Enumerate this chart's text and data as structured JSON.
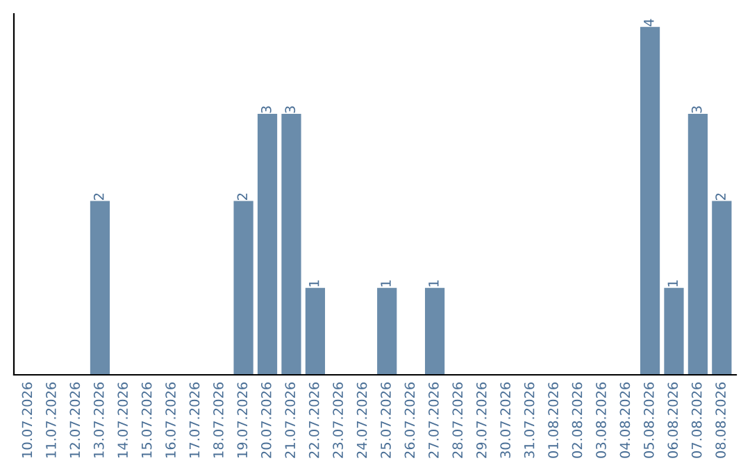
{
  "chart_data": {
    "type": "bar",
    "categories": [
      "10.07.2026",
      "11.07.2026",
      "12.07.2026",
      "13.07.2026",
      "14.07.2026",
      "15.07.2026",
      "16.07.2026",
      "17.07.2026",
      "18.07.2026",
      "19.07.2026",
      "20.07.2026",
      "21.07.2026",
      "22.07.2026",
      "23.07.2026",
      "24.07.2026",
      "25.07.2026",
      "26.07.2026",
      "27.07.2026",
      "28.07.2026",
      "29.07.2026",
      "30.07.2026",
      "31.07.2026",
      "01.08.2026",
      "02.08.2026",
      "03.08.2026",
      "04.08.2026",
      "05.08.2026",
      "06.08.2026",
      "07.08.2026",
      "08.08.2026"
    ],
    "values": [
      null,
      null,
      null,
      2,
      null,
      null,
      null,
      null,
      null,
      2,
      3,
      3,
      1,
      null,
      null,
      1,
      null,
      1,
      null,
      null,
      null,
      null,
      null,
      null,
      null,
      null,
      4,
      1,
      3,
      2
    ],
    "color": "#6a8cab",
    "ylim": [
      0,
      4.15
    ],
    "tick_labels": "x",
    "data_labels": true,
    "grid": false,
    "legend": false
  }
}
